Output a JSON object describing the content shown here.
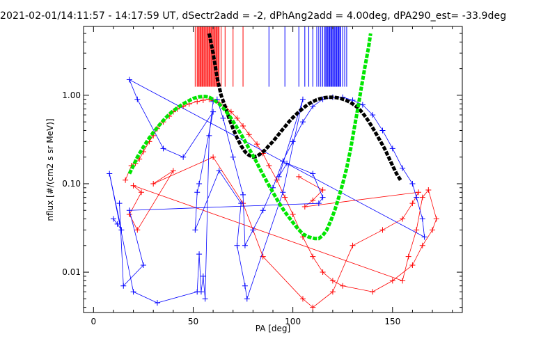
{
  "chart_data": {
    "type": "scatter",
    "title": "2021-02-01/14:11:57 - 14:17:59 UT, dSectr2add = -2, dPhAng2add = 4.00deg, dPA290_est= -33.9deg",
    "xlabel": "PA [deg]",
    "ylabel": "nflux [#/(cm2 s sr MeV)]",
    "xlim": [
      -5,
      185
    ],
    "ylim": [
      0.0035,
      6.0
    ],
    "yscale": "log",
    "xticks": [
      "0",
      "50",
      "100",
      "150"
    ],
    "yticks": [
      "0.01",
      "0.10",
      "1.00"
    ],
    "grid": false,
    "legend": "none",
    "colors": {
      "red": "#ff0000",
      "blue": "#0000ff",
      "black": "#000000",
      "green": "#00e600"
    },
    "series": [
      {
        "color": "red",
        "style": "crosses-lines",
        "points": [
          [
            16,
            0.11
          ],
          [
            19,
            0.16
          ],
          [
            21,
            0.17
          ],
          [
            23,
            0.19
          ],
          [
            25,
            0.23
          ],
          [
            28,
            0.3
          ],
          [
            30,
            0.35
          ],
          [
            32,
            0.42
          ],
          [
            35,
            0.5
          ],
          [
            38,
            0.58
          ],
          [
            40,
            0.65
          ],
          [
            42,
            0.7
          ],
          [
            45,
            0.75
          ],
          [
            48,
            0.8
          ],
          [
            52,
            0.85
          ],
          [
            55,
            0.88
          ],
          [
            58,
            0.9
          ],
          [
            60,
            0.87
          ],
          [
            63,
            0.82
          ],
          [
            66,
            0.75
          ],
          [
            69,
            0.65
          ],
          [
            72,
            0.55
          ],
          [
            75,
            0.45
          ],
          [
            78,
            0.36
          ],
          [
            82,
            0.28
          ],
          [
            85,
            0.22
          ],
          [
            88,
            0.16
          ],
          [
            92,
            0.11
          ],
          [
            96,
            0.07
          ],
          [
            100,
            0.045
          ],
          [
            105,
            0.025
          ],
          [
            110,
            0.015
          ],
          [
            115,
            0.01
          ],
          [
            120,
            0.008
          ],
          [
            125,
            0.007
          ],
          [
            140,
            0.006
          ],
          [
            150,
            0.008
          ],
          [
            160,
            0.012
          ],
          [
            165,
            0.02
          ],
          [
            170,
            0.03
          ],
          [
            172,
            0.04
          ],
          [
            168,
            0.085
          ],
          [
            165,
            0.07
          ],
          [
            162,
            0.03
          ],
          [
            158,
            0.015
          ],
          [
            155,
            0.008
          ],
          [
            20,
            0.095
          ],
          [
            24,
            0.08
          ],
          [
            18,
            0.045
          ],
          [
            22,
            0.03
          ],
          [
            40,
            0.14
          ],
          [
            30,
            0.1
          ],
          [
            60,
            0.2
          ],
          [
            75,
            0.06
          ],
          [
            85,
            0.015
          ],
          [
            105,
            0.005
          ],
          [
            110,
            0.004
          ],
          [
            120,
            0.006
          ],
          [
            130,
            0.02
          ],
          [
            145,
            0.03
          ],
          [
            155,
            0.04
          ],
          [
            160,
            0.06
          ],
          [
            163,
            0.08
          ],
          [
            106,
            0.055
          ],
          [
            110,
            0.065
          ],
          [
            115,
            0.085
          ],
          [
            103,
            0.12
          ]
        ]
      },
      {
        "color": "blue",
        "style": "crosses-lines",
        "points": [
          [
            10,
            0.04
          ],
          [
            12,
            0.035
          ],
          [
            14,
            0.03
          ],
          [
            8,
            0.13
          ],
          [
            20,
            0.006
          ],
          [
            32,
            0.0045
          ],
          [
            52,
            0.006
          ],
          [
            53,
            0.016
          ],
          [
            54,
            0.006
          ],
          [
            55,
            0.009
          ],
          [
            56,
            0.005
          ],
          [
            58,
            0.35
          ],
          [
            60,
            0.85
          ],
          [
            62,
            0.9
          ],
          [
            65,
            0.55
          ],
          [
            70,
            0.2
          ],
          [
            75,
            0.075
          ],
          [
            76,
            0.02
          ],
          [
            80,
            0.03
          ],
          [
            85,
            0.05
          ],
          [
            90,
            0.09
          ],
          [
            95,
            0.18
          ],
          [
            100,
            0.3
          ],
          [
            105,
            0.5
          ],
          [
            110,
            0.75
          ],
          [
            115,
            0.9
          ],
          [
            120,
            0.95
          ],
          [
            125,
            0.95
          ],
          [
            130,
            0.88
          ],
          [
            135,
            0.78
          ],
          [
            140,
            0.6
          ],
          [
            145,
            0.4
          ],
          [
            150,
            0.25
          ],
          [
            155,
            0.15
          ],
          [
            160,
            0.1
          ],
          [
            162,
            0.07
          ],
          [
            165,
            0.04
          ],
          [
            166,
            0.025
          ],
          [
            18,
            1.5
          ],
          [
            22,
            0.9
          ],
          [
            35,
            0.25
          ],
          [
            45,
            0.2
          ],
          [
            60,
            0.65
          ],
          [
            53,
            0.1
          ],
          [
            52,
            0.08
          ],
          [
            51,
            0.03
          ],
          [
            63,
            0.14
          ],
          [
            74,
            0.06
          ],
          [
            72,
            0.02
          ],
          [
            76,
            0.007
          ],
          [
            77,
            0.005
          ],
          [
            95,
            0.08
          ],
          [
            105,
            0.9
          ],
          [
            93,
            0.12
          ],
          [
            97,
            0.17
          ],
          [
            110,
            0.13
          ],
          [
            115,
            0.07
          ],
          [
            113,
            0.06
          ],
          [
            18,
            0.05
          ],
          [
            25,
            0.012
          ],
          [
            15,
            0.007
          ],
          [
            13,
            0.06
          ]
        ]
      },
      {
        "color": "black",
        "style": "dashed-thick",
        "points": [
          [
            58,
            5.0
          ],
          [
            60,
            3.0
          ],
          [
            62,
            1.6
          ],
          [
            64,
            1.0
          ],
          [
            66,
            0.75
          ],
          [
            68,
            0.55
          ],
          [
            70,
            0.42
          ],
          [
            72,
            0.33
          ],
          [
            74,
            0.27
          ],
          [
            76,
            0.23
          ],
          [
            78,
            0.21
          ],
          [
            80,
            0.2
          ],
          [
            82,
            0.205
          ],
          [
            84,
            0.22
          ],
          [
            86,
            0.24
          ],
          [
            88,
            0.27
          ],
          [
            90,
            0.3
          ],
          [
            92,
            0.34
          ],
          [
            94,
            0.39
          ],
          [
            96,
            0.44
          ],
          [
            98,
            0.5
          ],
          [
            100,
            0.56
          ],
          [
            102,
            0.62
          ],
          [
            104,
            0.68
          ],
          [
            106,
            0.74
          ],
          [
            108,
            0.8
          ],
          [
            110,
            0.85
          ],
          [
            112,
            0.89
          ],
          [
            114,
            0.92
          ],
          [
            116,
            0.94
          ],
          [
            118,
            0.95
          ],
          [
            120,
            0.95
          ],
          [
            122,
            0.94
          ],
          [
            124,
            0.92
          ],
          [
            126,
            0.89
          ],
          [
            128,
            0.85
          ],
          [
            130,
            0.8
          ],
          [
            132,
            0.74
          ],
          [
            134,
            0.67
          ],
          [
            136,
            0.59
          ],
          [
            138,
            0.51
          ],
          [
            140,
            0.43
          ],
          [
            142,
            0.36
          ],
          [
            144,
            0.3
          ],
          [
            146,
            0.25
          ],
          [
            148,
            0.2
          ],
          [
            150,
            0.16
          ],
          [
            152,
            0.13
          ],
          [
            154,
            0.11
          ]
        ]
      },
      {
        "color": "green",
        "style": "dashed-thick",
        "points": [
          [
            18,
            0.13
          ],
          [
            20,
            0.16
          ],
          [
            22,
            0.2
          ],
          [
            25,
            0.26
          ],
          [
            28,
            0.33
          ],
          [
            30,
            0.38
          ],
          [
            33,
            0.46
          ],
          [
            36,
            0.55
          ],
          [
            39,
            0.64
          ],
          [
            42,
            0.72
          ],
          [
            45,
            0.8
          ],
          [
            48,
            0.87
          ],
          [
            50,
            0.92
          ],
          [
            53,
            0.96
          ],
          [
            56,
            0.97
          ],
          [
            58,
            0.95
          ],
          [
            60,
            0.9
          ],
          [
            63,
            0.8
          ],
          [
            66,
            0.68
          ],
          [
            69,
            0.55
          ],
          [
            72,
            0.43
          ],
          [
            75,
            0.33
          ],
          [
            78,
            0.25
          ],
          [
            81,
            0.19
          ],
          [
            84,
            0.14
          ],
          [
            87,
            0.105
          ],
          [
            90,
            0.08
          ],
          [
            93,
            0.061
          ],
          [
            96,
            0.048
          ],
          [
            99,
            0.039
          ],
          [
            102,
            0.032
          ],
          [
            105,
            0.027
          ],
          [
            108,
            0.025
          ],
          [
            111,
            0.024
          ],
          [
            113,
            0.024
          ],
          [
            115,
            0.026
          ],
          [
            117,
            0.03
          ],
          [
            119,
            0.038
          ],
          [
            121,
            0.05
          ],
          [
            123,
            0.07
          ],
          [
            125,
            0.1
          ],
          [
            127,
            0.15
          ],
          [
            129,
            0.25
          ],
          [
            131,
            0.45
          ],
          [
            133,
            0.8
          ],
          [
            134,
            1.1
          ],
          [
            136,
            2.0
          ],
          [
            138,
            3.5
          ],
          [
            139,
            5.0
          ]
        ]
      }
    ],
    "spikes": [
      {
        "color": "red",
        "x": [
          51,
          52,
          52.5,
          53,
          53.5,
          54,
          54.5,
          55,
          55.5,
          56,
          56.5,
          57,
          57.5,
          58,
          58.5,
          59,
          59.5,
          60,
          60.5,
          61,
          61.5,
          62,
          62.5,
          63,
          64,
          66,
          70,
          75
        ]
      },
      {
        "color": "blue",
        "x": [
          88,
          96,
          103,
          106,
          108,
          110,
          112,
          113,
          114,
          115,
          116,
          116.5,
          117,
          117.5,
          118,
          118.5,
          119,
          119.5,
          120,
          120.5,
          121,
          121.5,
          122,
          122.5,
          123,
          123.5,
          124,
          125,
          126,
          127
        ]
      }
    ]
  }
}
